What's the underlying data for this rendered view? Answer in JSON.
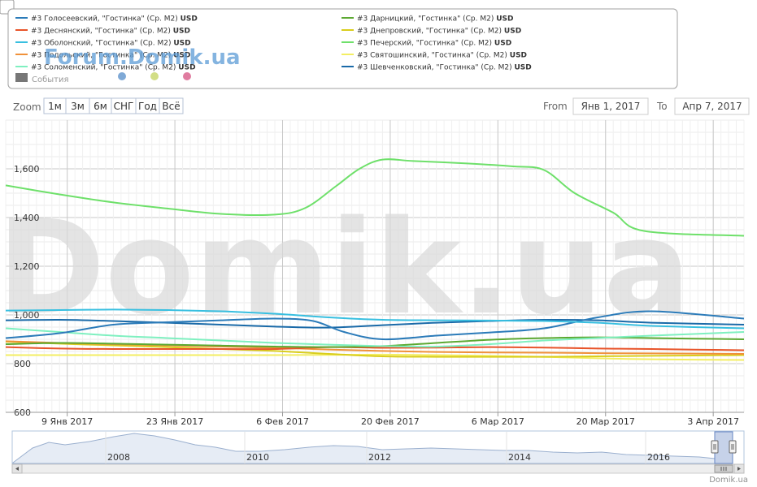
{
  "menu_icon": "corner-menu-icon",
  "legend": {
    "events_label": "События",
    "items": [
      {
        "name": "#3 Голосеевский, \"Гостинка\" (Ср. М2)",
        "unit": "USD",
        "color": "#2b7bb9"
      },
      {
        "name": "#3 Деснянский, \"Гостинка\" (Ср. М2)",
        "unit": "USD",
        "color": "#e8542a"
      },
      {
        "name": "#3 Оболонский, \"Гостинка\" (Ср. М2)",
        "unit": "USD",
        "color": "#38bfe0"
      },
      {
        "name": "#3 Подольский, \"Гостинка\" (Ср. М2)",
        "unit": "USD",
        "color": "#f0913a"
      },
      {
        "name": "#3 Соломенский, \"Гостинка\" (Ср. М2)",
        "unit": "USD",
        "color": "#7ff0c0"
      },
      {
        "name": "#3 Дарницкий, \"Гостинка\" (Ср. М2)",
        "unit": "USD",
        "color": "#5ca932"
      },
      {
        "name": "#3 Днепровский, \"Гостинка\" (Ср. М2)",
        "unit": "USD",
        "color": "#d9cd1c"
      },
      {
        "name": "#3 Печерский, \"Гостинка\" (Ср. М2)",
        "unit": "USD",
        "color": "#6ee06a"
      },
      {
        "name": "#3 Святошинский, \"Гостинка\" (Ср. М2)",
        "unit": "USD",
        "color": "#f3ee62"
      },
      {
        "name": "#3 Шевченковский, \"Гостинка\" (Ср. М2)",
        "unit": "USD",
        "color": "#1a6aa8"
      }
    ],
    "event_dots": [
      "#7fa9d6",
      "#d2de86",
      "#e07ca0"
    ]
  },
  "watermark_small": "Forum.Domik.ua",
  "watermark_big": "Domik.ua",
  "zoom": {
    "label": "Zoom",
    "buttons": [
      "1м",
      "3м",
      "6м",
      "СНГ",
      "Год",
      "Всё"
    ]
  },
  "range": {
    "from_label": "From",
    "from_value": "Янв 1, 2017",
    "to_label": "To",
    "to_value": "Апр 7, 2017"
  },
  "credit": "Domik.ua",
  "navigator": {
    "year_labels": [
      "2008",
      "2010",
      "2012",
      "2014",
      "2016"
    ],
    "arrow_left": "arrow-left-icon",
    "arrow_right": "arrow-right-icon",
    "grip": "scrollbar-grip-icon"
  },
  "chart_data": {
    "type": "line",
    "x_unit": "date",
    "xlim": [
      "2017-01-01",
      "2017-04-07"
    ],
    "ylim": [
      600,
      1800
    ],
    "y_ticks": [
      600,
      800,
      1000,
      1200,
      1400,
      1600
    ],
    "y_tick_labels": [
      "600",
      "800",
      "1,000",
      "1,200",
      "1,400",
      "1,600"
    ],
    "x_ticks": [
      "2017-01-09",
      "2017-01-23",
      "2017-02-06",
      "2017-02-20",
      "2017-03-06",
      "2017-03-20",
      "2017-04-03"
    ],
    "x_tick_labels": [
      "9 Янв 2017",
      "23 Янв 2017",
      "6 Фев 2017",
      "20 Фев 2017",
      "6 Мар 2017",
      "20 Мар 2017",
      "3 Апр 2017"
    ],
    "grid": true,
    "legend_position": "top",
    "series": [
      {
        "name": "#3 Печерский, \"Гостинка\" (Ср. М2)",
        "color": "#6ee06a",
        "x": [
          "2017-01-01",
          "2017-01-08",
          "2017-01-15",
          "2017-01-22",
          "2017-01-29",
          "2017-02-05",
          "2017-02-09",
          "2017-02-13",
          "2017-02-16",
          "2017-02-19",
          "2017-02-23",
          "2017-03-02",
          "2017-03-08",
          "2017-03-12",
          "2017-03-16",
          "2017-03-21",
          "2017-03-25",
          "2017-04-07"
        ],
        "y": [
          1532,
          1495,
          1462,
          1437,
          1415,
          1412,
          1440,
          1530,
          1600,
          1638,
          1632,
          1622,
          1610,
          1595,
          1500,
          1420,
          1345,
          1325
        ]
      },
      {
        "name": "#3 Оболонский, \"Гостинка\" (Ср. М2)",
        "color": "#38bfe0",
        "x": [
          "2017-01-01",
          "2017-01-08",
          "2017-01-15",
          "2017-01-22",
          "2017-01-29",
          "2017-02-05",
          "2017-02-12",
          "2017-02-19",
          "2017-02-26",
          "2017-03-05",
          "2017-03-12",
          "2017-03-19",
          "2017-03-26",
          "2017-04-07"
        ],
        "y": [
          1018,
          1020,
          1022,
          1020,
          1015,
          1005,
          990,
          980,
          978,
          977,
          975,
          968,
          955,
          945
        ]
      },
      {
        "name": "#3 Голосеевский, \"Гостинка\" (Ср. М2)",
        "color": "#2b7bb9",
        "x": [
          "2017-01-01",
          "2017-01-08",
          "2017-01-15",
          "2017-01-22",
          "2017-01-29",
          "2017-02-05",
          "2017-02-10",
          "2017-02-14",
          "2017-02-19",
          "2017-02-26",
          "2017-03-05",
          "2017-03-12",
          "2017-03-19",
          "2017-03-26",
          "2017-04-07"
        ],
        "y": [
          905,
          925,
          960,
          970,
          978,
          985,
          975,
          930,
          900,
          915,
          928,
          945,
          990,
          1015,
          985
        ]
      },
      {
        "name": "#3 Шевченковский, \"Гостинка\" (Ср. М2)",
        "color": "#1a6aa8",
        "x": [
          "2017-01-01",
          "2017-01-08",
          "2017-01-15",
          "2017-01-22",
          "2017-01-29",
          "2017-02-05",
          "2017-02-12",
          "2017-02-19",
          "2017-02-26",
          "2017-03-05",
          "2017-03-12",
          "2017-03-19",
          "2017-03-26",
          "2017-04-07"
        ],
        "y": [
          978,
          980,
          975,
          968,
          960,
          952,
          948,
          958,
          968,
          975,
          980,
          978,
          968,
          960
        ]
      },
      {
        "name": "#3 Соломенский, \"Гостинка\" (Ср. М2)",
        "color": "#7ff0c0",
        "x": [
          "2017-01-01",
          "2017-01-08",
          "2017-01-15",
          "2017-01-22",
          "2017-01-29",
          "2017-02-05",
          "2017-02-12",
          "2017-02-19",
          "2017-02-26",
          "2017-03-05",
          "2017-03-12",
          "2017-03-19",
          "2017-03-26",
          "2017-04-07"
        ],
        "y": [
          945,
          930,
          915,
          905,
          895,
          885,
          878,
          872,
          870,
          880,
          895,
          905,
          915,
          930
        ]
      },
      {
        "name": "#3 Дарницкий, \"Гостинка\" (Ср. М2)",
        "color": "#5ca932",
        "x": [
          "2017-01-01",
          "2017-01-08",
          "2017-01-15",
          "2017-01-22",
          "2017-01-29",
          "2017-02-05",
          "2017-02-12",
          "2017-02-19",
          "2017-02-26",
          "2017-03-05",
          "2017-03-12",
          "2017-03-19",
          "2017-03-26",
          "2017-04-07"
        ],
        "y": [
          880,
          885,
          882,
          878,
          874,
          870,
          868,
          872,
          885,
          898,
          905,
          908,
          905,
          900
        ]
      },
      {
        "name": "#3 Деснянский, \"Гостинка\" (Ср. М2)",
        "color": "#e8542a",
        "x": [
          "2017-01-01",
          "2017-01-08",
          "2017-01-15",
          "2017-01-22",
          "2017-01-29",
          "2017-02-05",
          "2017-02-12",
          "2017-02-19",
          "2017-02-26",
          "2017-03-05",
          "2017-03-12",
          "2017-03-19",
          "2017-03-26",
          "2017-04-07"
        ],
        "y": [
          868,
          862,
          860,
          860,
          860,
          860,
          868,
          865,
          866,
          868,
          866,
          862,
          860,
          855
        ]
      },
      {
        "name": "#3 Подольский, \"Гостинка\" (Ср. М2)",
        "color": "#f0913a",
        "x": [
          "2017-01-01",
          "2017-01-08",
          "2017-01-15",
          "2017-01-22",
          "2017-01-29",
          "2017-02-05",
          "2017-02-12",
          "2017-02-19",
          "2017-02-26",
          "2017-03-05",
          "2017-03-12",
          "2017-03-19",
          "2017-03-26",
          "2017-04-07"
        ],
        "y": [
          892,
          885,
          880,
          875,
          870,
          865,
          858,
          852,
          848,
          846,
          845,
          843,
          842,
          840
        ]
      },
      {
        "name": "#3 Днепровский, \"Гостинка\" (Ср. М2)",
        "color": "#d9cd1c",
        "x": [
          "2017-01-01",
          "2017-01-08",
          "2017-01-15",
          "2017-01-22",
          "2017-01-29",
          "2017-02-05",
          "2017-02-12",
          "2017-02-19",
          "2017-02-26",
          "2017-03-05",
          "2017-03-12",
          "2017-03-19",
          "2017-03-26",
          "2017-04-07"
        ],
        "y": [
          890,
          882,
          875,
          868,
          860,
          852,
          840,
          830,
          828,
          828,
          828,
          830,
          832,
          835
        ]
      },
      {
        "name": "#3 Святошинский, \"Гостинка\" (Ср. М2)",
        "color": "#f3ee62",
        "x": [
          "2017-01-01",
          "2017-01-08",
          "2017-01-15",
          "2017-01-22",
          "2017-01-29",
          "2017-02-05",
          "2017-02-12",
          "2017-02-19",
          "2017-02-26",
          "2017-03-05",
          "2017-03-12",
          "2017-03-19",
          "2017-03-26",
          "2017-04-07"
        ],
        "y": [
          835,
          835,
          835,
          835,
          835,
          835,
          836,
          837,
          835,
          832,
          828,
          822,
          818,
          815
        ]
      }
    ]
  }
}
